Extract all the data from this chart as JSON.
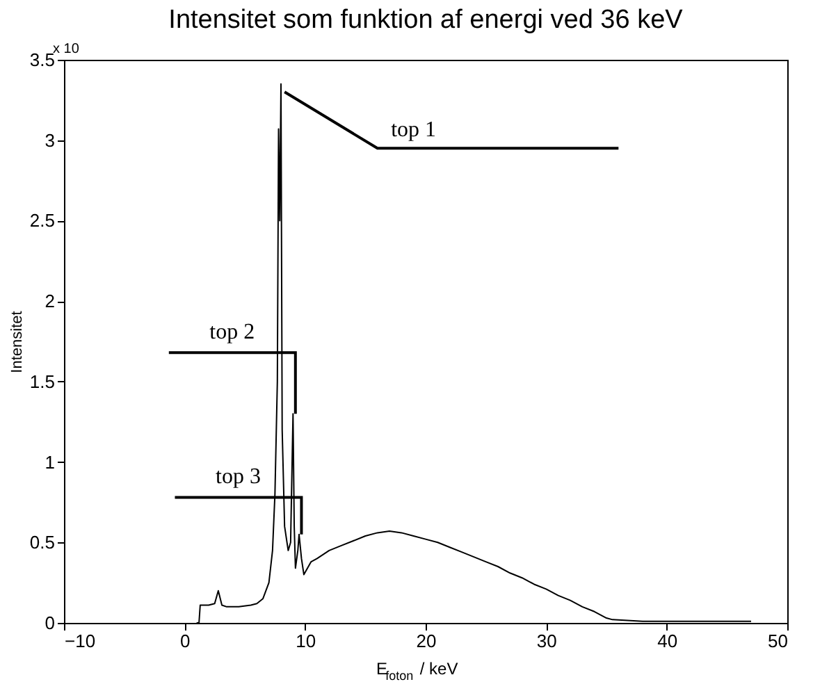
{
  "chart_data": {
    "type": "line",
    "title": "Intensitet som funktion af energi ved 36 keV",
    "xlabel": "E$_{foton}$ / keV",
    "ylabel": "Intensitet",
    "annotations": [
      {
        "text": "top 1",
        "x": 8.0,
        "y": 3.35
      },
      {
        "text": "top 2",
        "x": 9.0,
        "y": 1.3
      },
      {
        "text": "top 3",
        "x": 9.5,
        "y": 0.55
      },
      "x 10"
    ],
    "series": [
      {
        "color": "#000000",
        "x": [
          1.0,
          1.2,
          1.3,
          2.0,
          2.5,
          2.8,
          3.1,
          3.5,
          4.5,
          5.5,
          6.0,
          6.5,
          7.0,
          7.3,
          7.5,
          7.7,
          7.8,
          7.9,
          8.0,
          8.1,
          8.3,
          8.5,
          8.6,
          8.8,
          9.0,
          9.1,
          9.2,
          9.4,
          9.5,
          9.7,
          9.9,
          10.5,
          11.0,
          12.0,
          13.0,
          14.0,
          15.0,
          16.0,
          17.0,
          18.0,
          19.0,
          20.0,
          21.0,
          22.0,
          23.0,
          24.0,
          25.0,
          26.0,
          27.0,
          28.0,
          29.0,
          30.0,
          31.0,
          32.0,
          33.0,
          34.0,
          35.0,
          35.5,
          38.0,
          40.0,
          44.0,
          47.0
        ],
        "values": [
          0.0,
          0.0,
          0.11,
          0.11,
          0.12,
          0.2,
          0.11,
          0.1,
          0.1,
          0.11,
          0.12,
          0.15,
          0.25,
          0.45,
          0.8,
          1.5,
          3.07,
          2.5,
          3.35,
          1.2,
          0.6,
          0.5,
          0.45,
          0.5,
          1.3,
          0.6,
          0.34,
          0.45,
          0.55,
          0.4,
          0.3,
          0.38,
          0.4,
          0.45,
          0.48,
          0.51,
          0.54,
          0.56,
          0.57,
          0.56,
          0.54,
          0.52,
          0.5,
          0.47,
          0.44,
          0.41,
          0.38,
          0.35,
          0.31,
          0.28,
          0.24,
          0.21,
          0.17,
          0.14,
          0.1,
          0.07,
          0.03,
          0.02,
          0.01,
          0.01,
          0.01,
          0.01
        ]
      }
    ],
    "xlim": [
      -10,
      50
    ],
    "xticks": [
      -10,
      0,
      10,
      20,
      30,
      40,
      50
    ],
    "ylim": [
      0,
      3.5
    ],
    "yticks": [
      0,
      0.5,
      1,
      1.5,
      2,
      2.5,
      3,
      3.5
    ],
    "grid": false,
    "marker": "none",
    "line_style": "solid"
  }
}
